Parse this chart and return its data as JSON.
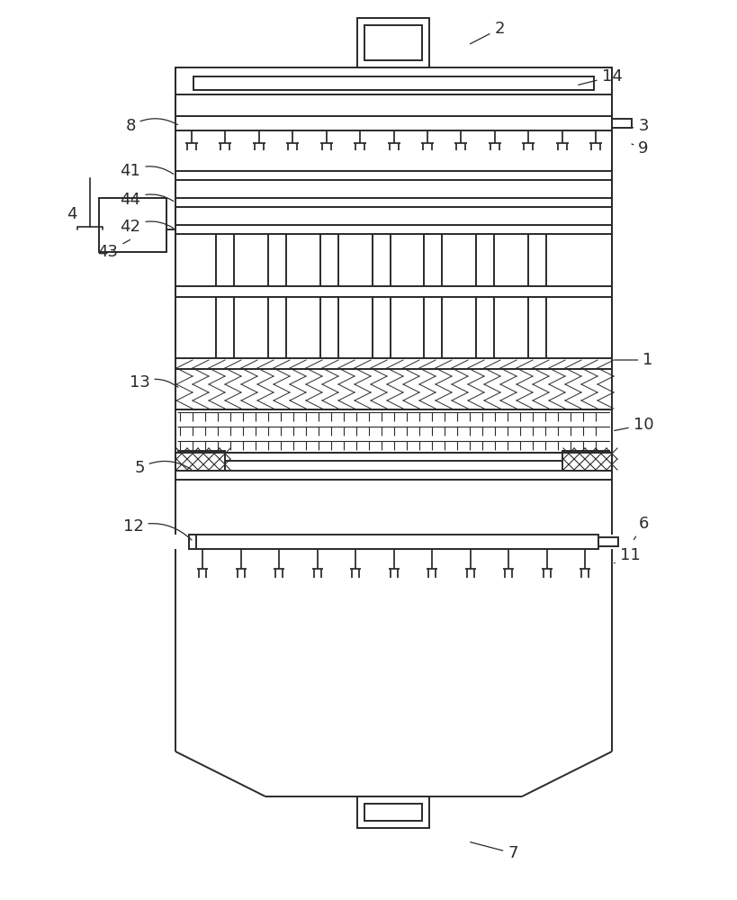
{
  "fig_width": 8.19,
  "fig_height": 10.0,
  "bg_color": "#ffffff",
  "line_color": "#2a2a2a",
  "lw": 1.4
}
